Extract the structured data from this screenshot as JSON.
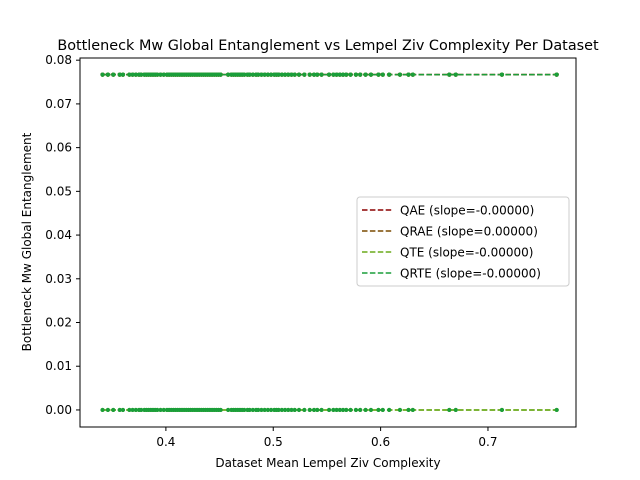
{
  "chart_data": {
    "type": "scatter",
    "title": "Bottleneck Mw Global Entanglement vs Lempel Ziv Complexity Per Dataset",
    "xlabel": "Dataset Mean Lempel Ziv Complexity",
    "ylabel": "Bottleneck Mw Global Entanglement",
    "xlim": [
      0.32,
      0.782
    ],
    "ylim": [
      -0.0039,
      0.0805
    ],
    "x_ticks": [
      0.4,
      0.5,
      0.6,
      0.7
    ],
    "y_ticks": [
      0.0,
      0.01,
      0.02,
      0.03,
      0.04,
      0.05,
      0.06,
      0.07,
      0.08
    ],
    "x_tick_labels": [
      "0.4",
      "0.5",
      "0.6",
      "0.7"
    ],
    "y_tick_labels": [
      "0.00",
      "0.01",
      "0.02",
      "0.03",
      "0.04",
      "0.05",
      "0.06",
      "0.07",
      "0.08"
    ],
    "legend_position": "center-right",
    "grid": false,
    "levels": [
      0.0,
      0.0767
    ],
    "x_values": [
      0.341,
      0.346,
      0.351,
      0.357,
      0.36,
      0.366,
      0.369,
      0.372,
      0.375,
      0.377,
      0.38,
      0.382,
      0.384,
      0.386,
      0.388,
      0.39,
      0.392,
      0.395,
      0.398,
      0.401,
      0.403,
      0.405,
      0.407,
      0.409,
      0.411,
      0.413,
      0.415,
      0.417,
      0.419,
      0.421,
      0.423,
      0.425,
      0.427,
      0.429,
      0.431,
      0.433,
      0.435,
      0.437,
      0.439,
      0.441,
      0.443,
      0.445,
      0.447,
      0.449,
      0.451,
      0.458,
      0.461,
      0.463,
      0.465,
      0.467,
      0.469,
      0.471,
      0.473,
      0.476,
      0.478,
      0.481,
      0.484,
      0.486,
      0.489,
      0.492,
      0.495,
      0.498,
      0.501,
      0.503,
      0.505,
      0.508,
      0.511,
      0.514,
      0.517,
      0.52,
      0.524,
      0.529,
      0.534,
      0.538,
      0.541,
      0.545,
      0.552,
      0.556,
      0.559,
      0.562,
      0.565,
      0.568,
      0.572,
      0.577,
      0.581,
      0.586,
      0.591,
      0.598,
      0.602,
      0.608,
      0.618,
      0.626,
      0.63,
      0.664,
      0.67,
      0.713,
      0.764
    ],
    "series": [
      {
        "name": "QAE (slope=-0.00000)",
        "color": "#8b0000",
        "level": 0.0767,
        "slope": 0
      },
      {
        "name": "QRAE (slope=0.00000)",
        "color": "#7a4a00",
        "level": 0.0767,
        "slope": 0
      },
      {
        "name": "QTE (slope=-0.00000)",
        "color": "#6aaa1a",
        "level": 0.0,
        "slope": 0
      },
      {
        "name": "QRTE (slope=-0.00000)",
        "color": "#1a9e3a",
        "level": 0.0767,
        "slope": 0
      }
    ]
  }
}
